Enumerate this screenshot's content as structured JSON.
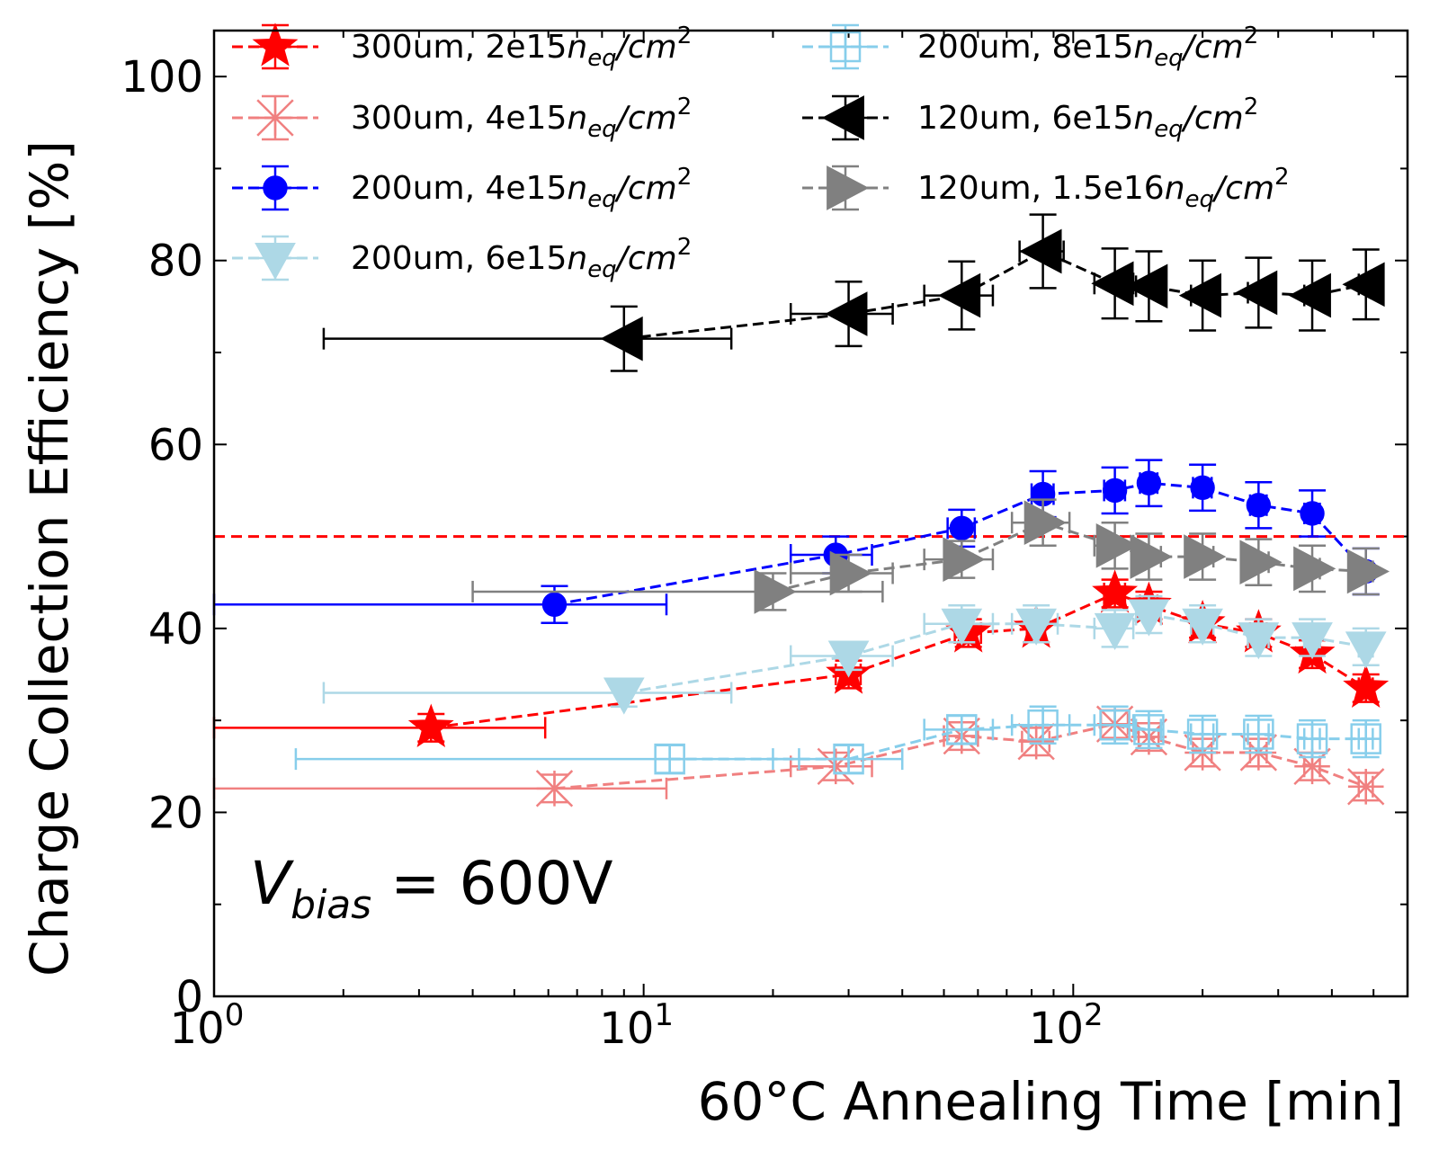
{
  "chart_data": {
    "type": "scatter",
    "title": "",
    "xlabel": "60°C Annealing Time [min]",
    "ylabel": "Charge Collection Efficiency [%]",
    "xscale": "log",
    "xlim": [
      1,
      600
    ],
    "ylim": [
      0,
      105
    ],
    "x_tick_labels": [
      {
        "base": "10",
        "exp": "0"
      },
      {
        "base": "10",
        "exp": "1"
      },
      {
        "base": "10",
        "exp": "2"
      }
    ],
    "y_ticks": [
      0,
      20,
      40,
      60,
      80,
      100
    ],
    "y_tick_labels": [
      "0",
      "20",
      "40",
      "60",
      "80",
      "100"
    ],
    "reference_line": {
      "y": 50,
      "color": "#ff0000",
      "style": "dashed"
    },
    "annotation": {
      "symbol": "V",
      "subscript": "bias",
      "text": " = 600V"
    },
    "legend_position": "top",
    "series": [
      {
        "thickness": "300um, 2e15",
        "fluence_unit": "n",
        "fluence_sub": "eq",
        "fluence_tail": "/cm",
        "fluence_sup": "2",
        "color": "#ff0000",
        "marker": "star",
        "points": [
          {
            "x": 3.2,
            "xlo": 1.0,
            "xhi": 5.9,
            "y": 29.2,
            "yerr": 1.5
          },
          {
            "x": 30,
            "xlo": 28,
            "xhi": 32,
            "y": 35.0,
            "yerr": 1.5
          },
          {
            "x": 57,
            "xlo": 53,
            "xhi": 61,
            "y": 39.5,
            "yerr": 1.5
          },
          {
            "x": 82,
            "xlo": 78,
            "xhi": 86,
            "y": 40.0,
            "yerr": 1.5
          },
          {
            "x": 125,
            "xlo": 118,
            "xhi": 132,
            "y": 43.8,
            "yerr": 1.5
          },
          {
            "x": 150,
            "xlo": 143,
            "xhi": 157,
            "y": 42.5,
            "yerr": 1.5
          },
          {
            "x": 200,
            "xlo": 190,
            "xhi": 210,
            "y": 40.5,
            "yerr": 1.5
          },
          {
            "x": 270,
            "xlo": 258,
            "xhi": 282,
            "y": 39.5,
            "yerr": 1.5
          },
          {
            "x": 360,
            "xlo": 345,
            "xhi": 375,
            "y": 37.2,
            "yerr": 1.5
          },
          {
            "x": 480,
            "xlo": 462,
            "xhi": 498,
            "y": 33.5,
            "yerr": 1.5
          }
        ]
      },
      {
        "thickness": "300um, 4e15",
        "fluence_unit": "n",
        "fluence_sub": "eq",
        "fluence_tail": "/cm",
        "fluence_sup": "2",
        "color": "#f08080",
        "marker": "x-square",
        "points": [
          {
            "x": 6.2,
            "xlo": 1.0,
            "xhi": 11.3,
            "y": 22.6,
            "yerr": 1.5
          },
          {
            "x": 28,
            "xlo": 22,
            "xhi": 34,
            "y": 25.0,
            "yerr": 1.5
          },
          {
            "x": 55,
            "xlo": 50,
            "xhi": 60,
            "y": 28.3,
            "yerr": 1.5
          },
          {
            "x": 82,
            "xlo": 76,
            "xhi": 88,
            "y": 27.7,
            "yerr": 1.5
          },
          {
            "x": 125,
            "xlo": 116,
            "xhi": 134,
            "y": 29.6,
            "yerr": 1.5
          },
          {
            "x": 150,
            "xlo": 142,
            "xhi": 158,
            "y": 28.2,
            "yerr": 1.5
          },
          {
            "x": 200,
            "xlo": 190,
            "xhi": 210,
            "y": 26.5,
            "yerr": 1.5
          },
          {
            "x": 270,
            "xlo": 258,
            "xhi": 282,
            "y": 26.5,
            "yerr": 1.5
          },
          {
            "x": 360,
            "xlo": 345,
            "xhi": 375,
            "y": 25.0,
            "yerr": 1.5
          },
          {
            "x": 480,
            "xlo": 462,
            "xhi": 498,
            "y": 22.8,
            "yerr": 1.5
          }
        ]
      },
      {
        "thickness": "200um, 4e15",
        "fluence_unit": "n",
        "fluence_sub": "eq",
        "fluence_tail": "/cm",
        "fluence_sup": "2",
        "color": "#0000ff",
        "marker": "circle",
        "points": [
          {
            "x": 6.2,
            "xlo": 1.0,
            "xhi": 11.3,
            "y": 42.6,
            "yerr": 2.0
          },
          {
            "x": 28,
            "xlo": 22,
            "xhi": 34,
            "y": 48.0,
            "yerr": 2.0
          },
          {
            "x": 55,
            "xlo": 51,
            "xhi": 59,
            "y": 50.9,
            "yerr": 2.0
          },
          {
            "x": 85,
            "xlo": 80,
            "xhi": 90,
            "y": 54.6,
            "yerr": 2.5
          },
          {
            "x": 125,
            "xlo": 118,
            "xhi": 132,
            "y": 55.0,
            "yerr": 2.5
          },
          {
            "x": 150,
            "xlo": 143,
            "xhi": 157,
            "y": 55.8,
            "yerr": 2.5
          },
          {
            "x": 200,
            "xlo": 190,
            "xhi": 210,
            "y": 55.3,
            "yerr": 2.5
          },
          {
            "x": 270,
            "xlo": 258,
            "xhi": 282,
            "y": 53.4,
            "yerr": 2.5
          },
          {
            "x": 360,
            "xlo": 345,
            "xhi": 375,
            "y": 52.5,
            "yerr": 2.5
          },
          {
            "x": 480,
            "xlo": 462,
            "xhi": 498,
            "y": 46.2,
            "yerr": 2.5
          }
        ]
      },
      {
        "thickness": "200um, 6e15",
        "fluence_unit": "n",
        "fluence_sub": "eq",
        "fluence_tail": "/cm",
        "fluence_sup": "2",
        "color": "#add8e6",
        "marker": "triangle-down",
        "points": [
          {
            "x": 9.0,
            "xlo": 1.8,
            "xhi": 16.0,
            "y": 33.0,
            "yerr": 1.5
          },
          {
            "x": 30,
            "xlo": 22,
            "xhi": 38,
            "y": 37.0,
            "yerr": 1.5
          },
          {
            "x": 55,
            "xlo": 45,
            "xhi": 65,
            "y": 40.5,
            "yerr": 2.0
          },
          {
            "x": 82,
            "xlo": 72,
            "xhi": 92,
            "y": 40.5,
            "yerr": 2.0
          },
          {
            "x": 125,
            "xlo": 112,
            "xhi": 138,
            "y": 40.0,
            "yerr": 2.0
          },
          {
            "x": 150,
            "xlo": 140,
            "xhi": 160,
            "y": 41.5,
            "yerr": 2.0
          },
          {
            "x": 200,
            "xlo": 188,
            "xhi": 212,
            "y": 40.5,
            "yerr": 2.0
          },
          {
            "x": 270,
            "xlo": 255,
            "xhi": 285,
            "y": 39.0,
            "yerr": 2.0
          },
          {
            "x": 360,
            "xlo": 345,
            "xhi": 375,
            "y": 39.0,
            "yerr": 2.0
          },
          {
            "x": 480,
            "xlo": 462,
            "xhi": 498,
            "y": 38.0,
            "yerr": 2.0
          }
        ]
      },
      {
        "thickness": "200um, 8e15",
        "fluence_unit": "n",
        "fluence_sub": "eq",
        "fluence_tail": "/cm",
        "fluence_sup": "2",
        "color": "#87ceeb",
        "marker": "plus-square",
        "points": [
          {
            "x": 11.5,
            "xlo": 1.55,
            "xhi": 23.0,
            "y": 25.8,
            "yerr": 1.5
          },
          {
            "x": 30,
            "xlo": 20,
            "xhi": 40,
            "y": 25.8,
            "yerr": 1.5
          },
          {
            "x": 55,
            "xlo": 45,
            "xhi": 65,
            "y": 29.0,
            "yerr": 1.5
          },
          {
            "x": 85,
            "xlo": 72,
            "xhi": 98,
            "y": 29.5,
            "yerr": 2.0
          },
          {
            "x": 125,
            "xlo": 112,
            "xhi": 138,
            "y": 29.5,
            "yerr": 2.0
          },
          {
            "x": 150,
            "xlo": 140,
            "xhi": 160,
            "y": 29.0,
            "yerr": 2.0
          },
          {
            "x": 200,
            "xlo": 188,
            "xhi": 212,
            "y": 28.5,
            "yerr": 2.0
          },
          {
            "x": 270,
            "xlo": 255,
            "xhi": 285,
            "y": 28.5,
            "yerr": 2.0
          },
          {
            "x": 360,
            "xlo": 345,
            "xhi": 375,
            "y": 28.0,
            "yerr": 2.0
          },
          {
            "x": 480,
            "xlo": 462,
            "xhi": 498,
            "y": 28.0,
            "yerr": 2.0
          }
        ]
      },
      {
        "thickness": "120um, 6e15",
        "fluence_unit": "n",
        "fluence_sub": "eq",
        "fluence_tail": "/cm",
        "fluence_sup": "2",
        "color": "#000000",
        "marker": "triangle-left",
        "points": [
          {
            "x": 9.0,
            "xlo": 1.8,
            "xhi": 16.0,
            "y": 71.5,
            "yerr": 3.5
          },
          {
            "x": 30,
            "xlo": 22,
            "xhi": 38,
            "y": 74.2,
            "yerr": 3.5
          },
          {
            "x": 55,
            "xlo": 45,
            "xhi": 65,
            "y": 76.2,
            "yerr": 3.7
          },
          {
            "x": 85,
            "xlo": 75,
            "xhi": 95,
            "y": 81.0,
            "yerr": 4.0
          },
          {
            "x": 125,
            "xlo": 112,
            "xhi": 138,
            "y": 77.5,
            "yerr": 3.8
          },
          {
            "x": 150,
            "xlo": 140,
            "xhi": 160,
            "y": 77.2,
            "yerr": 3.8
          },
          {
            "x": 200,
            "xlo": 188,
            "xhi": 212,
            "y": 76.2,
            "yerr": 3.8
          },
          {
            "x": 270,
            "xlo": 255,
            "xhi": 285,
            "y": 76.5,
            "yerr": 3.8
          },
          {
            "x": 360,
            "xlo": 345,
            "xhi": 375,
            "y": 76.2,
            "yerr": 3.8
          },
          {
            "x": 480,
            "xlo": 462,
            "xhi": 498,
            "y": 77.4,
            "yerr": 3.8
          }
        ]
      },
      {
        "thickness": "120um, 1.5e16",
        "fluence_unit": "n",
        "fluence_sub": "eq",
        "fluence_tail": "/cm",
        "fluence_sup": "2",
        "color": "#808080",
        "marker": "triangle-right",
        "points": [
          {
            "x": 20,
            "xlo": 4,
            "xhi": 36,
            "y": 44.0,
            "yerr": 2.0
          },
          {
            "x": 30,
            "xlo": 22,
            "xhi": 38,
            "y": 46.0,
            "yerr": 2.0
          },
          {
            "x": 55,
            "xlo": 45,
            "xhi": 65,
            "y": 47.5,
            "yerr": 2.0
          },
          {
            "x": 85,
            "xlo": 72,
            "xhi": 98,
            "y": 51.5,
            "yerr": 2.5
          },
          {
            "x": 125,
            "xlo": 112,
            "xhi": 138,
            "y": 49.0,
            "yerr": 2.5
          },
          {
            "x": 150,
            "xlo": 140,
            "xhi": 160,
            "y": 47.8,
            "yerr": 2.5
          },
          {
            "x": 200,
            "xlo": 188,
            "xhi": 212,
            "y": 47.8,
            "yerr": 2.5
          },
          {
            "x": 270,
            "xlo": 255,
            "xhi": 285,
            "y": 47.2,
            "yerr": 2.5
          },
          {
            "x": 360,
            "xlo": 345,
            "xhi": 375,
            "y": 46.5,
            "yerr": 2.5
          },
          {
            "x": 480,
            "xlo": 462,
            "xhi": 498,
            "y": 46.2,
            "yerr": 2.5
          }
        ]
      }
    ]
  }
}
